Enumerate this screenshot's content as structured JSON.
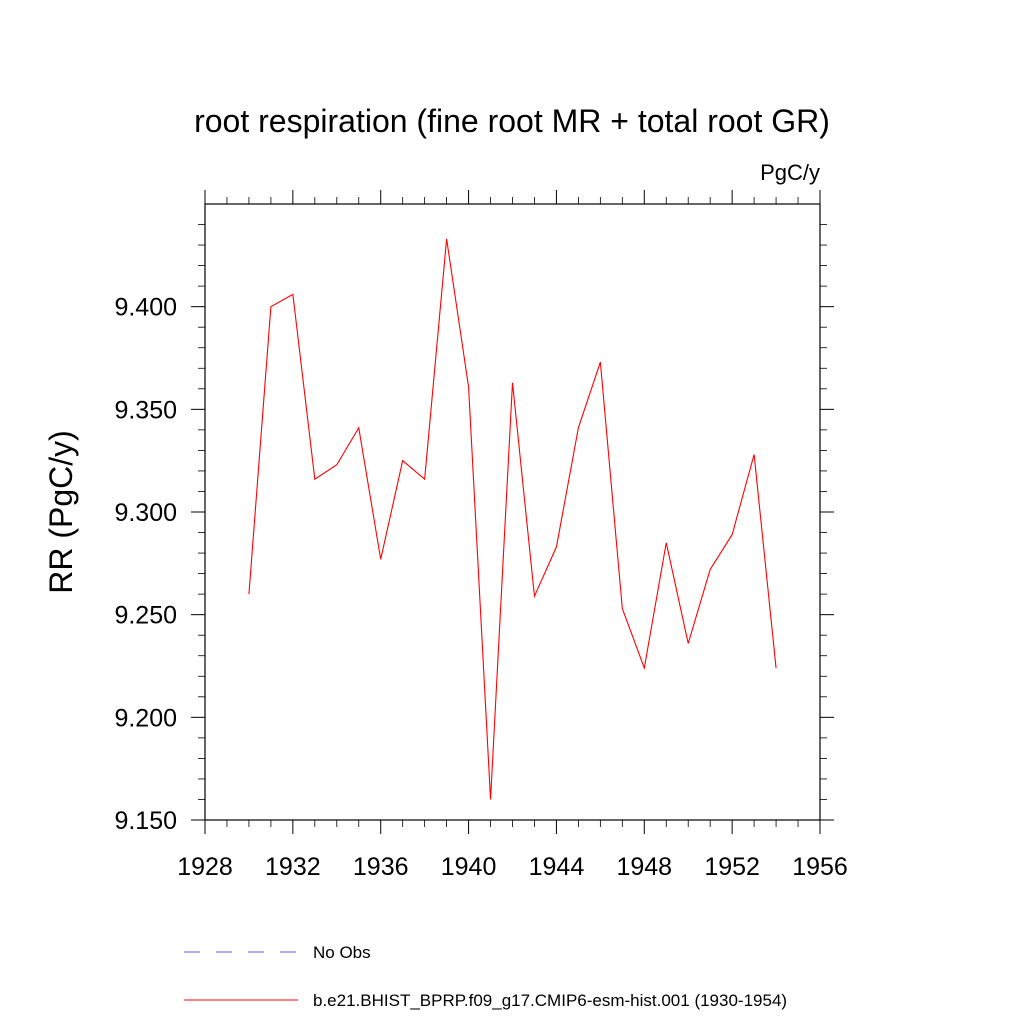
{
  "chart_data": {
    "type": "line",
    "title": "root respiration (fine root MR + total root GR)",
    "units_label": "PgC/y",
    "ylabel": "RR  (PgC/y)",
    "xlabel": "",
    "xlim": [
      1928,
      1956
    ],
    "ylim": [
      9.15,
      9.45
    ],
    "x_ticks": [
      1928,
      1932,
      1936,
      1940,
      1944,
      1948,
      1952,
      1956
    ],
    "x_tick_labels": [
      "1928",
      "1932",
      "1936",
      "1940",
      "1944",
      "1948",
      "1952",
      "1956"
    ],
    "y_ticks": [
      9.15,
      9.2,
      9.25,
      9.3,
      9.35,
      9.4
    ],
    "y_tick_labels": [
      "9.150",
      "9.200",
      "9.250",
      "9.300",
      "9.350",
      "9.400"
    ],
    "grid": false,
    "series": [
      {
        "name": "b.e21.BHIST_BPRP.f09_g17.CMIP6-esm-hist.001 (1930-1954)",
        "color": "#ff0000",
        "x": [
          1930,
          1931,
          1932,
          1933,
          1934,
          1935,
          1936,
          1937,
          1938,
          1939,
          1940,
          1941,
          1942,
          1943,
          1944,
          1945,
          1946,
          1947,
          1948,
          1949,
          1950,
          1951,
          1952,
          1953,
          1954
        ],
        "y": [
          9.26,
          9.4,
          9.406,
          9.316,
          9.323,
          9.341,
          9.277,
          9.325,
          9.316,
          9.433,
          9.361,
          9.16,
          9.363,
          9.259,
          9.283,
          9.341,
          9.373,
          9.253,
          9.224,
          9.285,
          9.236,
          9.272,
          9.289,
          9.328,
          9.224
        ]
      }
    ],
    "legend": {
      "placement": "bottom",
      "entries": [
        {
          "label": "No Obs",
          "color": "#6a5acd",
          "style": "dashed"
        },
        {
          "label": "b.e21.BHIST_BPRP.f09_g17.CMIP6-esm-hist.001 (1930-1954)",
          "color": "#ff0000",
          "style": "solid"
        }
      ]
    }
  }
}
